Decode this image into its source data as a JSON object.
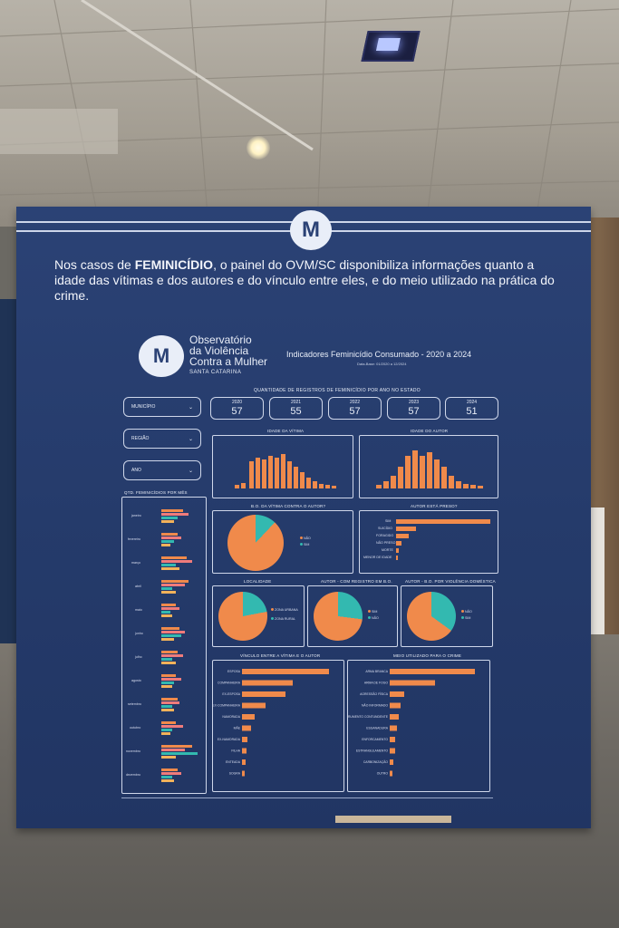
{
  "board": {
    "headline_prefix": "Nos casos de ",
    "headline_bold": "FEMINICÍDIO",
    "headline_rest": ", o painel do OVM/SC disponibiliza informações quanto a idade das vítimas e dos autores e do vínculo entre eles, e do meio utilizado na prática do crime.",
    "brand_line1": "Observatório",
    "brand_line2": "da Violência",
    "brand_line3": "Contra a Mulher",
    "brand_line4": "SANTA CATARINA",
    "indicators_title": "Indicadores Feminicídio Consumado - 2020 a 2024",
    "data_base": "Data-Base: 01/2020 a 12/2024",
    "quantity_title": "QUANTIDADE DE REGISTROS DE FEMINICÍDIO POR ANO NO ESTADO",
    "filters": [
      "MUNICÍPIO",
      "REGIÃO",
      "ANO"
    ],
    "years": [
      {
        "year": "2020",
        "count": "57"
      },
      {
        "year": "2021",
        "count": "55"
      },
      {
        "year": "2022",
        "count": "57"
      },
      {
        "year": "2023",
        "count": "57"
      },
      {
        "year": "2024",
        "count": "51"
      }
    ],
    "panels": {
      "idade_vitima": "IDADE DA VÍTIMA",
      "idade_autor": "IDADE DO AUTOR",
      "por_mes": "QTD. FEMINICÍDIOS POR MÊS",
      "bo_vitima": "B.O. DA VÍTIMA CONTRA O AUTOR?",
      "autor_preso": "AUTOR ESTÁ PRESO?",
      "localidade": "LOCALIDADE",
      "autor_registro": "AUTOR - COM REGISTRO EM B.O.",
      "autor_violencia": "AUTOR - B.O. POR VIOLÊNCIA DOMÉSTICA",
      "vinculo": "VÍNCULO ENTRE A VÍTIMA E O AUTOR",
      "meio": "MEIO UTILIZADO PARA O CRIME"
    },
    "months": [
      "janeiro",
      "fevereiro",
      "março",
      "abril",
      "maio",
      "junho",
      "julho",
      "agosto",
      "setembro",
      "outubro",
      "novembro",
      "dezembro"
    ],
    "preso_labels": [
      "SIM",
      "SUICÍDIO",
      "FORAGIDO",
      "NÃO PRESO",
      "MORTE",
      "MENOR DE IDADE"
    ],
    "vinculo_labels": [
      "ESPOSA",
      "COMPANHEIRA",
      "EX-ESPOSA",
      "EX-COMPANHEIRA",
      "NAMORADA",
      "MÃE",
      "EX-NAMORADA",
      "FILHA",
      "ENTEADA",
      "SOGRA"
    ],
    "meio_labels": [
      "ARMA BRANCA",
      "ARMA DE FOGO",
      "AGRESSÃO FÍSICA",
      "NÃO INFORMADO",
      "AGRESSÃO FÍSICA COM INSTRUMENTO CONTUNDENTE",
      "ESGANADURA",
      "ENFORCAMENTO",
      "ESTRANGULAMENTO",
      "CARBONIZAÇÃO",
      "OUTRO"
    ],
    "pie_labels": {
      "nao": "NÃO",
      "sim": "SIM",
      "zona_urbana": "ZONA URBANA",
      "zona_rural": "ZONA RURAL"
    }
  }
}
